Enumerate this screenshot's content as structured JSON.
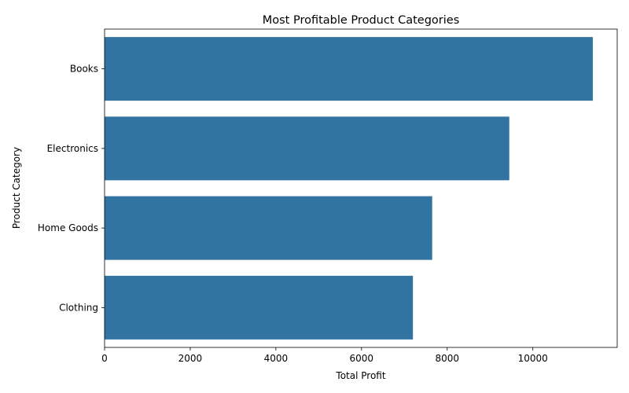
{
  "chart_data": {
    "type": "bar",
    "orientation": "horizontal",
    "title": "Most Profitable Product Categories",
    "xlabel": "Total Profit",
    "ylabel": "Product Category",
    "categories": [
      "Books",
      "Electronics",
      "Home Goods",
      "Clothing"
    ],
    "values": [
      11400,
      9450,
      7650,
      7200
    ],
    "xlim": [
      0,
      11970
    ],
    "xticks": [
      0,
      2000,
      4000,
      6000,
      8000,
      10000
    ],
    "bar_color": "#3274a1",
    "grid": false,
    "legend": "none"
  }
}
